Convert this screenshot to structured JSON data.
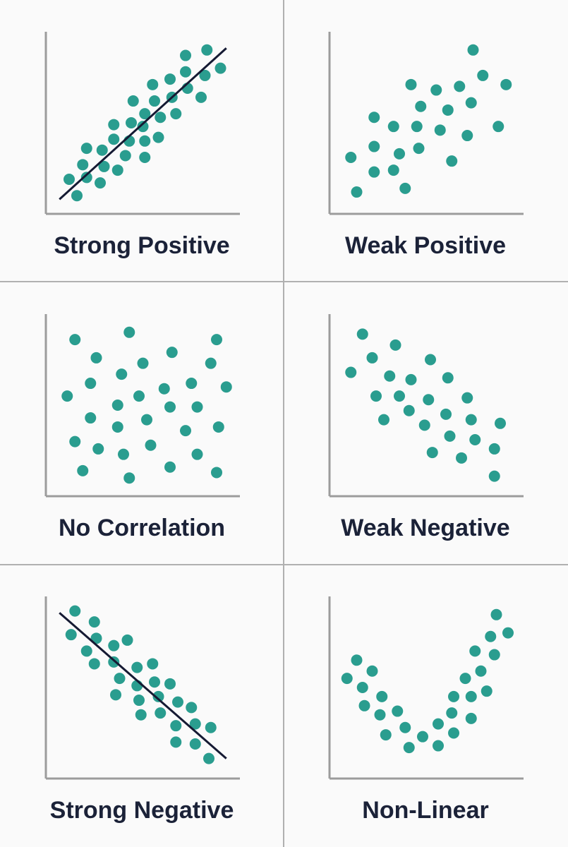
{
  "chart_data": [
    {
      "type": "scatter",
      "title": "Strong Positive",
      "color": "#2a9d8f",
      "xlim": [
        0,
        100
      ],
      "ylim": [
        0,
        100
      ],
      "x": [
        12,
        16,
        21,
        19,
        21,
        28,
        30,
        29,
        37,
        35,
        35,
        41,
        44,
        43,
        45,
        51,
        50,
        51,
        51,
        56,
        55,
        58,
        59,
        64,
        65,
        67,
        72,
        72,
        73,
        80,
        82,
        83,
        90
      ],
      "y": [
        19,
        10,
        20,
        27,
        36,
        17,
        26,
        35,
        24,
        41,
        49,
        32,
        50,
        40,
        62,
        55,
        48,
        40,
        31,
        62,
        71,
        42,
        53,
        74,
        64,
        55,
        87,
        78,
        69,
        64,
        76,
        90,
        80
      ],
      "trendline": {
        "x": [
          7,
          93
        ],
        "y": [
          8,
          91
        ]
      }
    },
    {
      "type": "scatter",
      "title": "Weak Positive",
      "color": "#2a9d8f",
      "xlim": [
        0,
        100
      ],
      "ylim": [
        0,
        100
      ],
      "x": [
        74,
        79,
        91,
        42,
        55,
        67,
        47,
        61,
        73,
        23,
        33,
        45,
        57,
        71,
        87,
        11,
        23,
        36,
        46,
        63,
        23,
        33,
        14,
        39
      ],
      "y": [
        90,
        76,
        71,
        71,
        68,
        70,
        59,
        57,
        61,
        53,
        48,
        48,
        46,
        43,
        48,
        31,
        37,
        33,
        36,
        29,
        23,
        24,
        12,
        14
      ]
    },
    {
      "type": "scatter",
      "title": "No Correlation",
      "color": "#2a9d8f",
      "xlim": [
        0,
        100
      ],
      "ylim": [
        0,
        100
      ],
      "x": [
        15,
        43,
        65,
        88,
        26,
        50,
        85,
        39,
        23,
        11,
        48,
        61,
        75,
        93,
        37,
        64,
        78,
        23,
        52,
        37,
        72,
        89,
        15,
        27,
        54,
        40,
        78,
        19,
        64,
        88,
        43
      ],
      "y": [
        86,
        90,
        79,
        86,
        76,
        73,
        73,
        67,
        62,
        55,
        55,
        59,
        62,
        60,
        50,
        49,
        49,
        43,
        42,
        38,
        36,
        38,
        30,
        26,
        28,
        23,
        23,
        14,
        16,
        13,
        10
      ]
    },
    {
      "type": "scatter",
      "title": "Weak Negative",
      "color": "#2a9d8f",
      "xlim": [
        0,
        100
      ],
      "ylim": [
        0,
        100
      ],
      "x": [
        17,
        34,
        22,
        11,
        52,
        31,
        42,
        61,
        24,
        36,
        51,
        71,
        41,
        60,
        28,
        49,
        73,
        88,
        62,
        75,
        53,
        68,
        85,
        85
      ],
      "y": [
        89,
        83,
        76,
        68,
        75,
        66,
        64,
        65,
        55,
        55,
        53,
        54,
        47,
        45,
        42,
        39,
        42,
        40,
        33,
        31,
        24,
        21,
        26,
        11
      ]
    },
    {
      "type": "scatter",
      "title": "Strong Negative",
      "color": "#2a9d8f",
      "xlim": [
        0,
        100
      ],
      "ylim": [
        0,
        100
      ],
      "x": [
        15,
        25,
        13,
        26,
        35,
        42,
        21,
        25,
        35,
        47,
        55,
        38,
        47,
        56,
        64,
        36,
        48,
        58,
        68,
        75,
        49,
        59,
        67,
        77,
        85,
        67,
        77,
        84
      ],
      "y": [
        92,
        86,
        79,
        77,
        73,
        76,
        70,
        63,
        64,
        61,
        63,
        55,
        51,
        53,
        52,
        46,
        43,
        45,
        42,
        39,
        35,
        36,
        29,
        30,
        28,
        20,
        19,
        11
      ],
      "trendline": {
        "x": [
          7,
          93
        ],
        "y": [
          91,
          11
        ]
      }
    },
    {
      "type": "scatter",
      "title": "Non-Linear",
      "color": "#2a9d8f",
      "xlim": [
        0,
        100
      ],
      "ylim": [
        0,
        100
      ],
      "x": [
        14,
        9,
        22,
        17,
        27,
        18,
        35,
        26,
        29,
        39,
        48,
        41,
        56,
        56,
        64,
        63,
        73,
        64,
        73,
        70,
        81,
        78,
        75,
        85,
        83,
        92,
        86
      ],
      "y": [
        65,
        55,
        59,
        50,
        45,
        40,
        37,
        35,
        24,
        28,
        23,
        17,
        18,
        30,
        25,
        36,
        33,
        45,
        45,
        55,
        48,
        59,
        70,
        68,
        78,
        80,
        90
      ]
    }
  ]
}
